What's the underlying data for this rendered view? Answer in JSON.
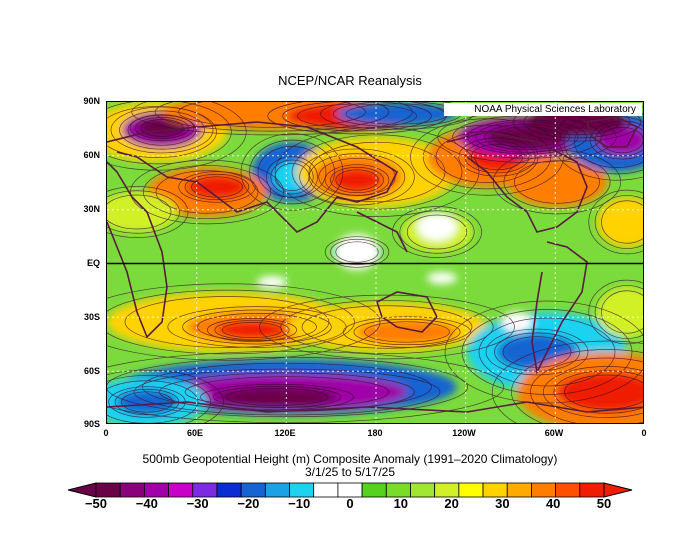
{
  "title": "NCEP/NCAR Reanalysis",
  "credit": "NOAA Physical Sciences Laboratory",
  "lat_labels": [
    "90N",
    "60N",
    "30N",
    "EQ",
    "30S",
    "60S",
    "90S"
  ],
  "lon_labels": [
    "0",
    "60E",
    "120E",
    "180",
    "120W",
    "60W",
    "0"
  ],
  "caption_line1": "500mb Geopotential Height (m) Composite Anomaly (1991–2020 Climatology)",
  "caption_line2": "3/1/25  to 5/17/25",
  "colorbar": {
    "labels": [
      "−50",
      "−40",
      "−30",
      "−20",
      "−10",
      "0",
      "10",
      "20",
      "30",
      "40",
      "50"
    ],
    "colors": [
      "#6a0046",
      "#8b007b",
      "#a000a8",
      "#c800c8",
      "#7d2be1",
      "#0a2cd0",
      "#1664d2",
      "#1ea0e6",
      "#1ed2f0",
      "#ffffff",
      "#ffffff",
      "#55d21e",
      "#78dc28",
      "#a0e632",
      "#d2f028",
      "#ffff00",
      "#ffd200",
      "#ffaa00",
      "#ff7d00",
      "#ff5000",
      "#f01e00"
    ]
  },
  "map_colors": {
    "neutral": "#7bdb3c",
    "light_pos": "#d2f028",
    "mid_pos": "#ffd200",
    "strong_pos": "#ff7d00",
    "max_pos": "#f01e00",
    "light_neg": "#1ed2f0",
    "mid_neg": "#1664d2",
    "strong_neg": "#a000a8",
    "max_neg": "#6a0046",
    "land_outline": "#5a1a40"
  }
}
